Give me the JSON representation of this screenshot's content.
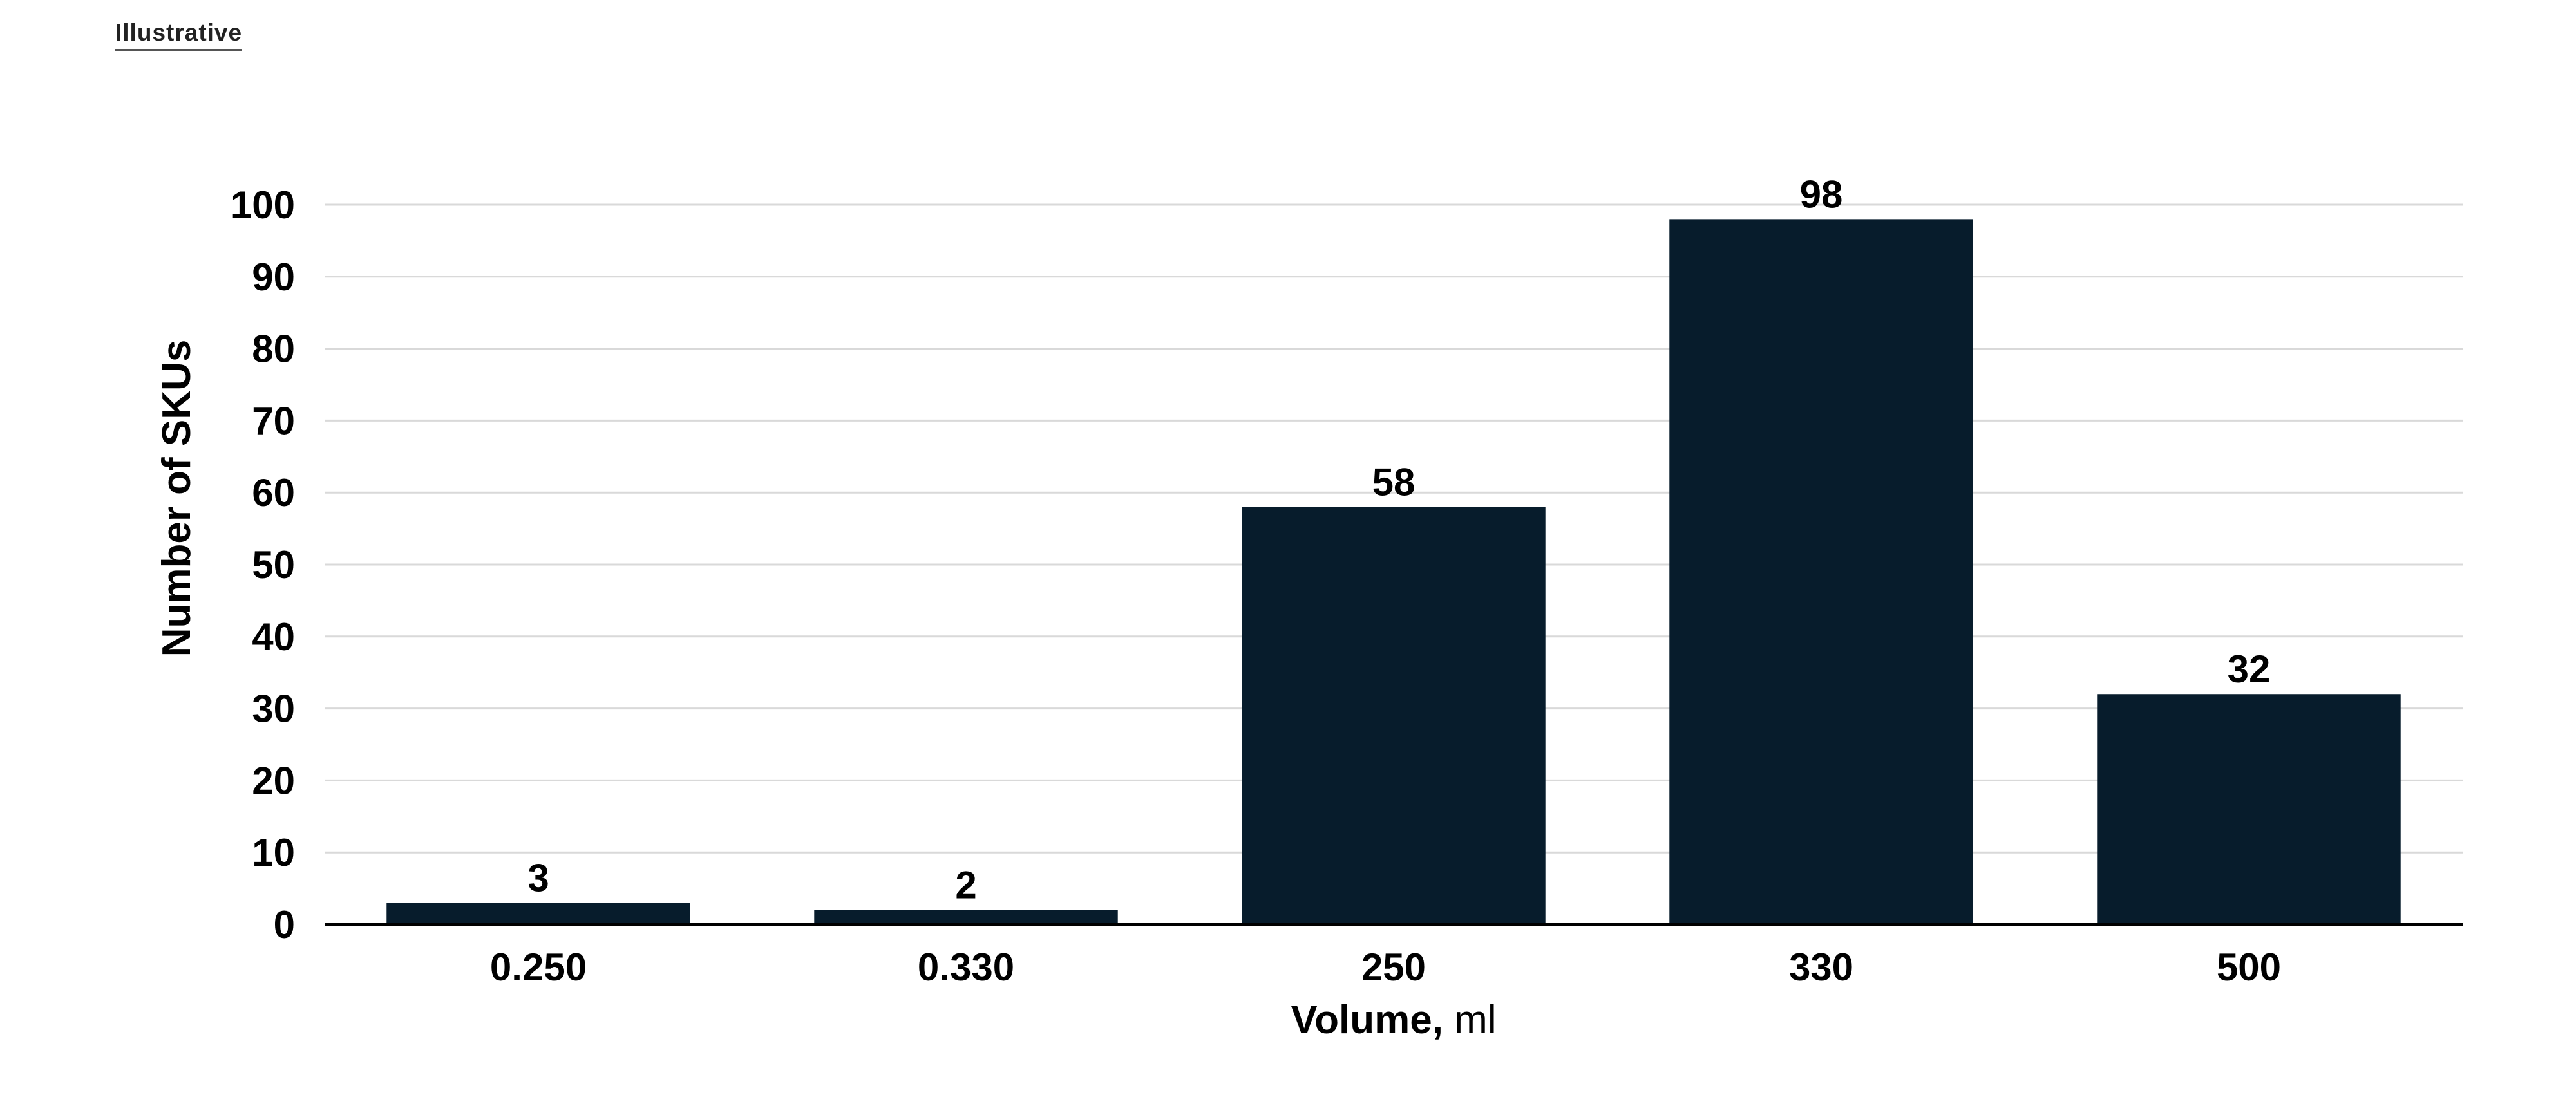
{
  "page": {
    "tag": "Illustrative"
  },
  "chart_data": {
    "type": "bar",
    "categories": [
      "0.250",
      "0.330",
      "250",
      "330",
      "500"
    ],
    "values": [
      3,
      2,
      58,
      98,
      32
    ],
    "data_labels": [
      "3",
      "2",
      "58",
      "98",
      "32"
    ],
    "xlabel": "Volume,",
    "xlabel_unit": " ml",
    "ylabel": "Number of SKUs",
    "ylim": [
      0,
      100
    ],
    "yticks": [
      "0",
      "10",
      "20",
      "30",
      "40",
      "50",
      "60",
      "70",
      "80",
      "90",
      "100"
    ],
    "grid": true,
    "legend": "none",
    "bar_color": "#071c2c",
    "grid_color": "#d9d9d9",
    "axis_color": "#000000"
  }
}
